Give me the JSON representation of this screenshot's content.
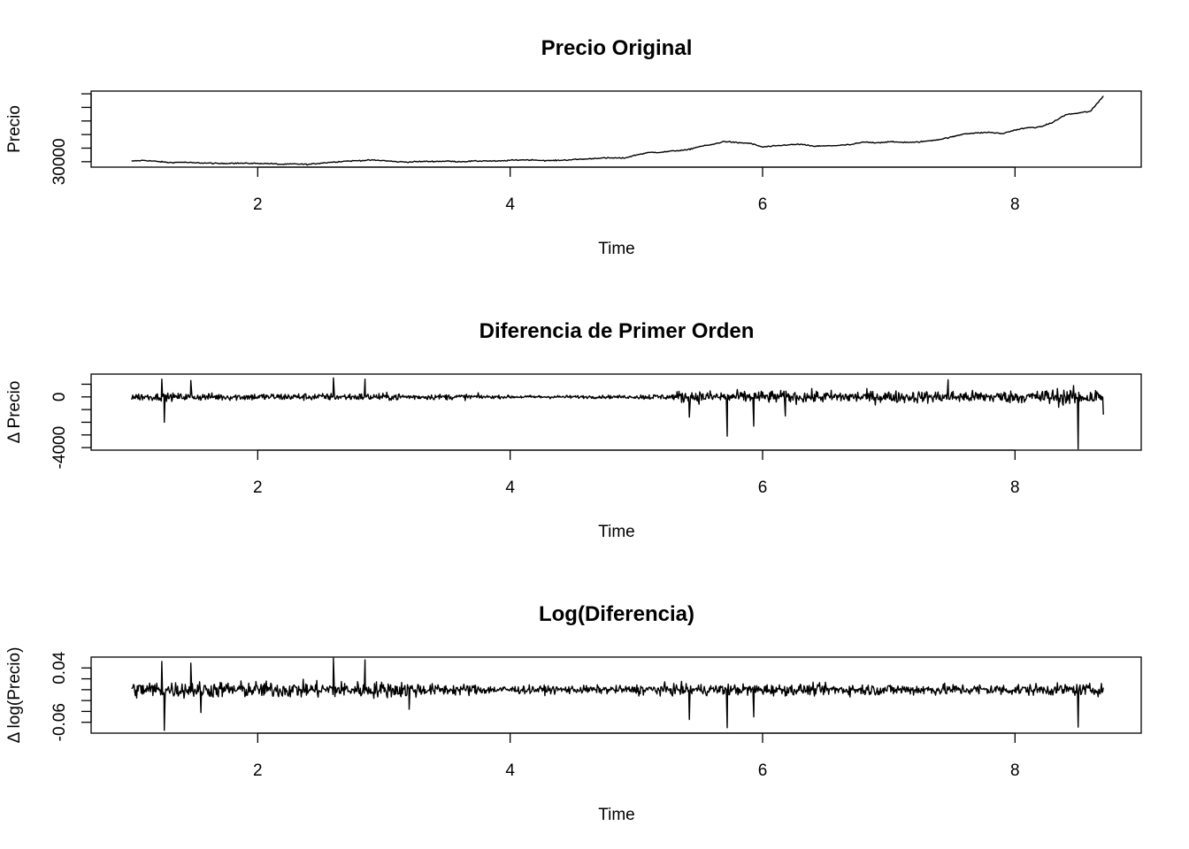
{
  "chart_data": [
    {
      "type": "line",
      "title": "Precio Original",
      "xlabel": "Time",
      "ylabel": "Precio",
      "xlim": [
        0.68,
        9.0
      ],
      "ylim": [
        28000,
        56000
      ],
      "x_ticks": [
        2,
        4,
        6,
        8
      ],
      "y_ticks": [
        30000,
        35000,
        40000,
        45000,
        50000,
        55000
      ],
      "y_tick_labels": [
        {
          "value": 30000,
          "label": "30000"
        }
      ],
      "grid": false,
      "x_range": [
        1.0,
        8.7
      ],
      "series": [
        {
          "x": [
            1.0,
            1.1,
            1.2,
            1.3,
            1.4,
            1.5,
            1.6,
            1.7,
            1.8,
            1.9,
            2.0,
            2.1,
            2.2,
            2.3,
            2.4,
            2.5,
            2.6,
            2.7,
            2.8,
            2.9,
            3.0,
            3.1,
            3.2,
            3.3,
            3.4,
            3.5,
            3.6,
            3.7,
            3.8,
            3.9,
            4.0,
            4.1,
            4.2,
            4.3,
            4.4,
            4.5,
            4.6,
            4.7,
            4.8,
            4.9,
            5.0,
            5.1,
            5.2,
            5.3,
            5.4,
            5.5,
            5.6,
            5.7,
            5.8,
            5.9,
            6.0,
            6.1,
            6.2,
            6.3,
            6.4,
            6.5,
            6.6,
            6.7,
            6.8,
            6.9,
            7.0,
            7.1,
            7.2,
            7.3,
            7.4,
            7.5,
            7.6,
            7.7,
            7.8,
            7.9,
            8.0,
            8.1,
            8.2,
            8.3,
            8.4,
            8.5,
            8.6,
            8.7
          ],
          "values": [
            30200,
            30500,
            30100,
            29700,
            29800,
            29600,
            29500,
            29300,
            29500,
            29400,
            29400,
            29300,
            29000,
            29200,
            29000,
            29500,
            29900,
            30200,
            30400,
            30600,
            30400,
            30000,
            29900,
            30100,
            30100,
            30200,
            30000,
            30200,
            30300,
            30200,
            30500,
            30700,
            30600,
            30400,
            30500,
            30800,
            31000,
            31300,
            31400,
            31300,
            32500,
            33400,
            33500,
            34000,
            34300,
            35600,
            36300,
            37500,
            37000,
            36800,
            35400,
            35800,
            36200,
            36400,
            35700,
            35800,
            36000,
            36300,
            37200,
            37000,
            37300,
            37200,
            37100,
            37600,
            38200,
            39100,
            40300,
            40600,
            40800,
            40300,
            41700,
            42500,
            42800,
            44500,
            47300,
            47900,
            48600,
            54200
          ]
        }
      ]
    },
    {
      "type": "line",
      "title": "Diferencia de Primer Orden",
      "xlabel": "Time",
      "ylabel": "Δ Precio",
      "xlim": [
        0.68,
        9.0
      ],
      "ylim": [
        -4200,
        1800
      ],
      "x_ticks": [
        2,
        4,
        6,
        8
      ],
      "y_ticks": [
        -4000,
        -3000,
        -2000,
        -1000,
        0,
        1000
      ],
      "y_tick_labels": [
        {
          "value": -4000,
          "label": "-4000"
        },
        {
          "value": 0,
          "label": "0"
        }
      ],
      "grid": false,
      "x_range": [
        1.0,
        8.7
      ],
      "spikes": [
        {
          "x": 1.24,
          "value": 1400
        },
        {
          "x": 1.26,
          "value": -2000
        },
        {
          "x": 1.47,
          "value": 1300
        },
        {
          "x": 2.6,
          "value": 1500
        },
        {
          "x": 2.85,
          "value": 1400
        },
        {
          "x": 5.42,
          "value": -1600
        },
        {
          "x": 5.72,
          "value": -3100
        },
        {
          "x": 5.93,
          "value": -2300
        },
        {
          "x": 6.18,
          "value": -1500
        },
        {
          "x": 7.47,
          "value": 1350
        },
        {
          "x": 8.5,
          "value": -4100
        },
        {
          "x": 8.7,
          "value": -1400
        }
      ]
    },
    {
      "type": "line",
      "title": "Log(Diferencia)",
      "xlabel": "Time",
      "ylabel": "Δ log(Precio)",
      "xlim": [
        0.68,
        9.0
      ],
      "ylim": [
        -0.08,
        0.06
      ],
      "x_ticks": [
        2,
        4,
        6,
        8
      ],
      "y_ticks": [
        -0.06,
        -0.04,
        -0.02,
        0.0,
        0.02,
        0.04
      ],
      "y_tick_labels": [
        {
          "value": -0.06,
          "label": "-0.06"
        },
        {
          "value": 0.04,
          "label": "0.04"
        }
      ],
      "grid": false,
      "x_range": [
        1.0,
        8.7
      ],
      "spikes": [
        {
          "x": 1.24,
          "value": 0.052
        },
        {
          "x": 1.26,
          "value": -0.075
        },
        {
          "x": 1.47,
          "value": 0.049
        },
        {
          "x": 1.55,
          "value": -0.042
        },
        {
          "x": 2.6,
          "value": 0.058
        },
        {
          "x": 2.85,
          "value": 0.055
        },
        {
          "x": 3.2,
          "value": -0.036
        },
        {
          "x": 5.42,
          "value": -0.055
        },
        {
          "x": 5.72,
          "value": -0.07
        },
        {
          "x": 5.93,
          "value": -0.05
        },
        {
          "x": 8.5,
          "value": -0.069
        }
      ]
    }
  ]
}
